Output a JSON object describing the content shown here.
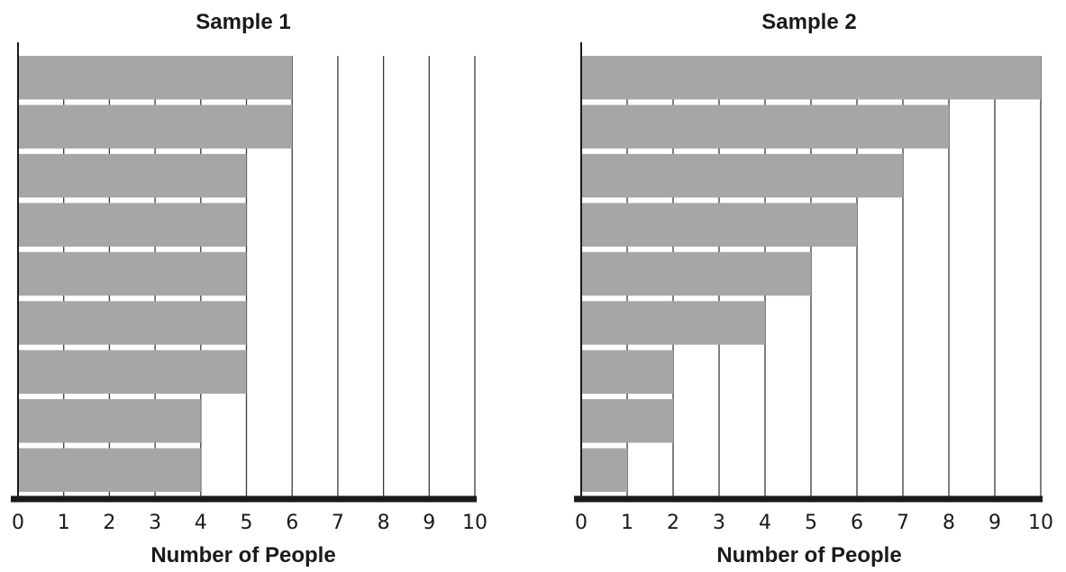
{
  "chart_data": [
    {
      "type": "bar",
      "orientation": "horizontal",
      "title": "Sample 1",
      "xlabel": "Number of People",
      "ylabel": "",
      "xlim": [
        0,
        10
      ],
      "x_ticks": [
        "0",
        "1",
        "2",
        "3",
        "4",
        "5",
        "6",
        "7",
        "8",
        "9",
        "10"
      ],
      "values": [
        6,
        6,
        5,
        5,
        5,
        5,
        5,
        4,
        4
      ],
      "grid": "vertical",
      "bar_color": "#a6a6a6",
      "axis_color": "#1a1a1a"
    },
    {
      "type": "bar",
      "orientation": "horizontal",
      "title": "Sample 2",
      "xlabel": "Number of People",
      "ylabel": "",
      "xlim": [
        0,
        10
      ],
      "x_ticks": [
        "0",
        "1",
        "2",
        "3",
        "4",
        "5",
        "6",
        "7",
        "8",
        "9",
        "10"
      ],
      "values": [
        10,
        8,
        7,
        6,
        5,
        4,
        2,
        2,
        1
      ],
      "grid": "vertical",
      "bar_color": "#a6a6a6",
      "axis_color": "#1a1a1a"
    }
  ]
}
